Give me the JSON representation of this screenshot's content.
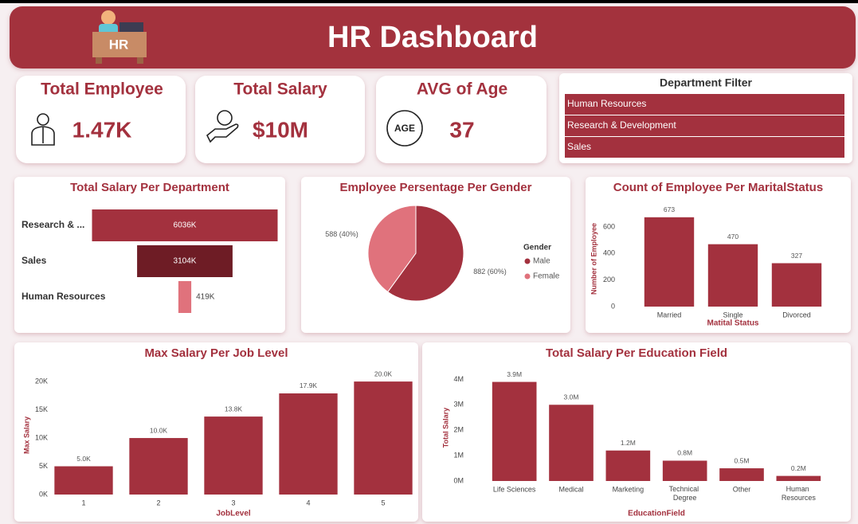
{
  "header": {
    "title": "HR Dashboard",
    "logo_text": "HR"
  },
  "kpis": [
    {
      "label": "Total Employee",
      "value": "1.47K"
    },
    {
      "label": "Total Salary",
      "value": "$10M"
    },
    {
      "label": "AVG of Age",
      "value": "37",
      "icon_text": "AGE"
    }
  ],
  "department_filter": {
    "title": "Department Filter",
    "options": [
      "Human Resources",
      "Research & Development",
      "Sales"
    ]
  },
  "chart_data": [
    {
      "type": "funnel",
      "title": "Total Salary Per Department",
      "categories": [
        "Research & ...",
        "Sales",
        "Human Resources"
      ],
      "values": [
        6036,
        3104,
        419
      ],
      "value_labels": [
        "6036K",
        "3104K",
        "419K"
      ],
      "colors": [
        "#a3313e",
        "#6e1c25",
        "#e0727c"
      ]
    },
    {
      "type": "pie",
      "title": "Employee Persentage Per Gender",
      "legend_title": "Gender",
      "categories": [
        "Male",
        "Female"
      ],
      "values": [
        882,
        588
      ],
      "value_labels": [
        "882 (60%)",
        "588 (40%)"
      ],
      "colors": [
        "#a3313e",
        "#e0727c"
      ],
      "legend": "right"
    },
    {
      "type": "bar",
      "title": "Count of Employee Per MaritalStatus",
      "categories": [
        "Married",
        "Single",
        "Divorced"
      ],
      "values": [
        673,
        470,
        327
      ],
      "color": "#a3313e",
      "ylim": [
        0,
        720
      ],
      "yticks": [
        0,
        200,
        400,
        600
      ],
      "ylabel": "Number of Employee",
      "xlabel": "Matital Status",
      "data_labels": true,
      "grid": false
    },
    {
      "type": "bar",
      "title": "Max Salary Per Job Level",
      "categories": [
        "1",
        "2",
        "3",
        "4",
        "5"
      ],
      "values": [
        5000,
        10000,
        13800,
        17900,
        20000
      ],
      "value_labels": [
        "5.0K",
        "10.0K",
        "13.8K",
        "17.9K",
        "20.0K"
      ],
      "color": "#a3313e",
      "ylim": [
        0,
        21000
      ],
      "yticks": [
        {
          "value": 0,
          "label": "0K"
        },
        {
          "value": 5000,
          "label": "5K"
        },
        {
          "value": 10000,
          "label": "10K"
        },
        {
          "value": 15000,
          "label": "15K"
        },
        {
          "value": 20000,
          "label": "20K"
        }
      ],
      "ylabel": "Max Salary",
      "xlabel": "JobLevel",
      "data_labels": true,
      "grid": false
    },
    {
      "type": "bar",
      "title": "Total Salary Per Education Field",
      "categories": [
        "Life Sciences",
        "Medical",
        "Marketing",
        "Technical Degree",
        "Other",
        "Human Resources"
      ],
      "values": [
        3900000,
        3000000,
        1200000,
        800000,
        500000,
        200000
      ],
      "value_labels": [
        "3.9M",
        "3.0M",
        "1.2M",
        "0.8M",
        "0.5M",
        "0.2M"
      ],
      "color": "#a3313e",
      "ylim": [
        0,
        4200000
      ],
      "yticks": [
        {
          "value": 0,
          "label": "0M"
        },
        {
          "value": 1000000,
          "label": "1M"
        },
        {
          "value": 2000000,
          "label": "2M"
        },
        {
          "value": 3000000,
          "label": "3M"
        },
        {
          "value": 4000000,
          "label": "4M"
        }
      ],
      "ylabel": "Total Salary",
      "xlabel": "EducationField",
      "data_labels": true,
      "grid": false
    }
  ]
}
